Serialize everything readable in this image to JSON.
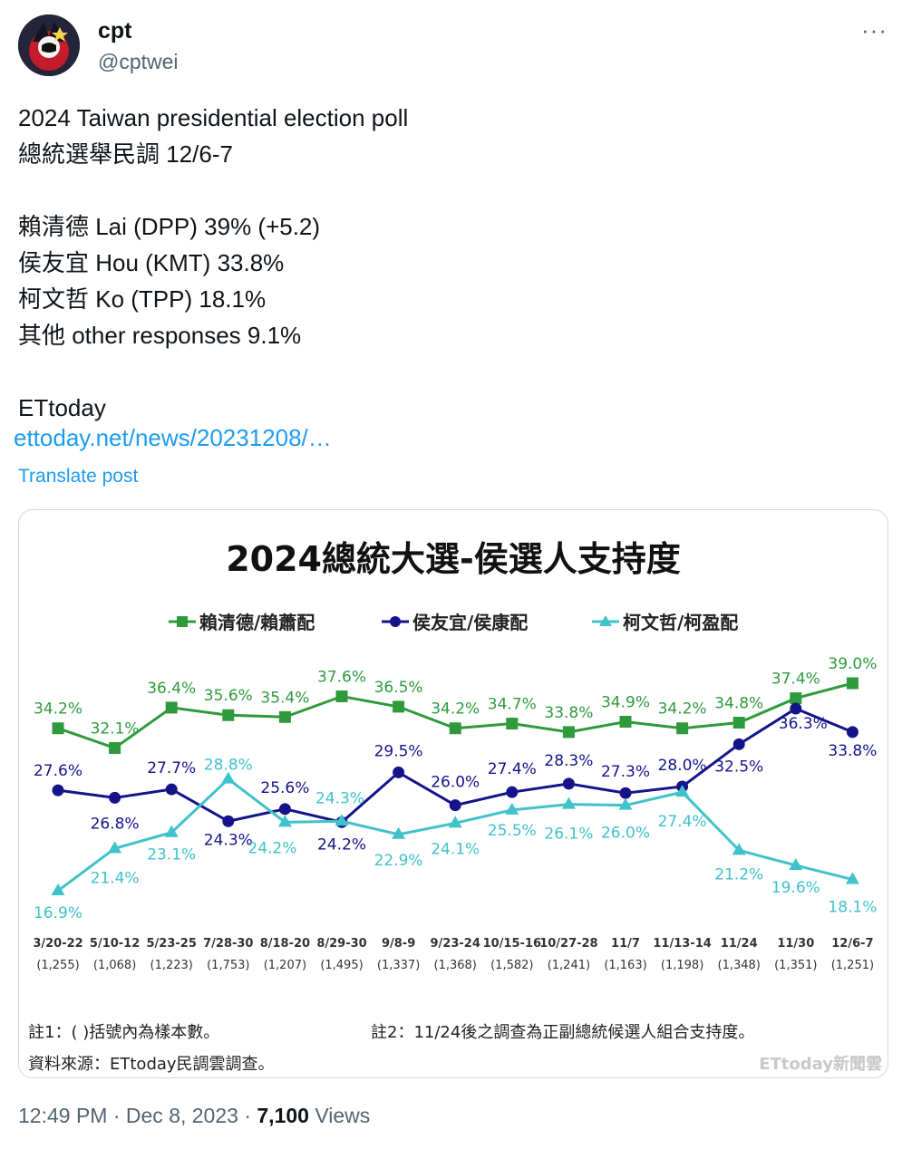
{
  "author": {
    "name": "cpt",
    "handle": "@cptwei"
  },
  "more_label": "···",
  "post": {
    "lines": [
      "2024 Taiwan presidential election poll",
      "總統選舉民調 12/6-7",
      "",
      "賴清德 Lai (DPP) 39% (+5.2)",
      "侯友宜 Hou (KMT) 33.8%",
      "柯文哲 Ko (TPP) 18.1%",
      "其他 other responses 9.1%",
      "",
      "ETtoday"
    ],
    "link": "ettoday.net/news/20231208/…",
    "translate": "Translate post"
  },
  "footer": {
    "time": "12:49 PM",
    "sep1": " · ",
    "date": "Dec 8, 2023",
    "sep2": " · ",
    "views_count": "7,100",
    "views_label": " Views"
  },
  "colors": {
    "green": "#2e9a3b",
    "navy": "#14138a",
    "teal": "#3fc2c9",
    "link": "#1d9bf0"
  },
  "chart_data": {
    "type": "line",
    "title": "2024總統大選-侯選人支持度",
    "categories": [
      "3/20-22",
      "5/10-12",
      "5/23-25",
      "7/28-30",
      "8/18-20",
      "8/29-30",
      "9/8-9",
      "9/23-24",
      "10/15-16",
      "10/27-28",
      "11/7",
      "11/13-14",
      "11/24",
      "11/30",
      "12/6-7"
    ],
    "sample_sizes": [
      "(1,255)",
      "(1,068)",
      "(1,223)",
      "(1,753)",
      "(1,207)",
      "(1,495)",
      "(1,337)",
      "(1,368)",
      "(1,582)",
      "(1,241)",
      "(1,163)",
      "(1,198)",
      "(1,348)",
      "(1,351)",
      "(1,251)"
    ],
    "series": [
      {
        "name": "賴清德/賴蕭配",
        "color": "#2e9a3b",
        "marker": "square",
        "values": [
          34.2,
          32.1,
          36.4,
          35.6,
          35.4,
          37.6,
          36.5,
          34.2,
          34.7,
          33.8,
          34.9,
          34.2,
          34.8,
          37.4,
          39.0
        ],
        "labels": [
          "34.2%",
          "32.1%",
          "36.4%",
          "35.6%",
          "35.4%",
          "37.6%",
          "36.5%",
          "34.2%",
          "34.7%",
          "33.8%",
          "34.9%",
          "34.2%",
          "34.8%",
          "37.4%",
          "39.0%"
        ]
      },
      {
        "name": "侯友宜/侯康配",
        "color": "#14138a",
        "marker": "circle",
        "values": [
          27.6,
          26.8,
          27.7,
          24.3,
          25.6,
          24.2,
          29.5,
          26.0,
          27.4,
          28.3,
          27.3,
          28.0,
          32.5,
          36.3,
          33.8
        ],
        "labels": [
          "27.6%",
          "26.8%",
          "27.7%",
          "24.3%",
          "25.6%",
          "24.2%",
          "29.5%",
          "26.0%",
          "27.4%",
          "28.3%",
          "27.3%",
          "28.0%",
          "32.5%",
          "36.3%",
          "33.8%"
        ]
      },
      {
        "name": "柯文哲/柯盈配",
        "color": "#3fc2c9",
        "marker": "triangle",
        "values": [
          16.9,
          21.4,
          23.1,
          28.8,
          24.2,
          24.3,
          22.9,
          24.1,
          25.5,
          26.1,
          26.0,
          27.4,
          21.2,
          19.6,
          18.1
        ],
        "labels": [
          "16.9%",
          "21.4%",
          "23.1%",
          "28.8%",
          "24.2%",
          "24.3%",
          "22.9%",
          "24.1%",
          "25.5%",
          "26.1%",
          "26.0%",
          "27.4%",
          "21.2%",
          "19.6%",
          "18.1%"
        ]
      }
    ],
    "notes": [
      "註1：( )括號內為樣本數。",
      "註2：11/24後之調查為正副總統候選人組合支持度。",
      "資料來源：ETtoday民調雲調查。"
    ],
    "watermark": "ETtoday新聞雲",
    "grid": false,
    "legend_placement": "top"
  }
}
